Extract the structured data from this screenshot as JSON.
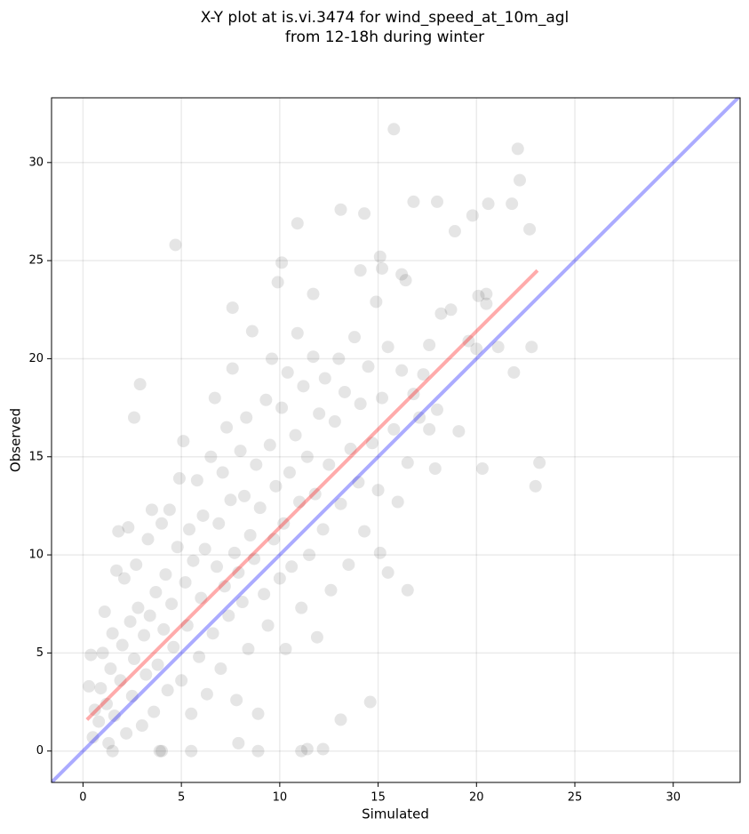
{
  "chart_data": {
    "type": "scatter",
    "title": "X-Y plot at is.vi.3474 for wind_speed_at_10m_agl",
    "subtitle": "from 12-18h during winter",
    "x_label": "Simulated",
    "y_label": "Observed",
    "xlim": [
      -1.6,
      33.4
    ],
    "ylim": [
      -1.6,
      33.3
    ],
    "xticks": [
      0,
      5,
      10,
      15,
      20,
      25,
      30
    ],
    "yticks": [
      0,
      5,
      10,
      15,
      20,
      25,
      30
    ],
    "grid": true,
    "point_color": "#000000",
    "point_alpha": 0.1,
    "x": [
      15.8,
      22.1,
      22.2,
      4.7,
      13.1,
      14.3,
      16.8,
      18,
      20.6,
      21.8,
      22.7,
      19.8,
      10.9,
      10.1,
      14.1,
      15.1,
      15.2,
      16.2,
      16.4,
      18.9,
      22.8,
      21.9,
      23,
      23.2,
      20.3,
      17.9,
      16.5,
      15.5,
      15.1,
      14.6,
      13.1,
      2.6,
      2.9,
      7.6,
      9.9,
      11.7,
      20.1,
      20.5,
      20.5,
      21.1,
      20,
      19.6,
      18.7,
      17.6,
      11.4,
      12.2,
      11.1,
      8.9,
      5.5,
      4,
      1.5,
      7.9,
      0.3,
      0.4,
      0.5,
      0.6,
      0.8,
      0.9,
      1.0,
      1.1,
      1.2,
      1.3,
      1.4,
      1.5,
      1.6,
      1.7,
      1.8,
      1.9,
      2.0,
      2.1,
      2.2,
      2.3,
      2.4,
      2.5,
      2.6,
      2.7,
      2.8,
      3.0,
      3.1,
      3.2,
      3.3,
      3.4,
      3.5,
      3.6,
      3.7,
      3.8,
      3.9,
      4.0,
      4.1,
      4.2,
      4.3,
      4.4,
      4.5,
      4.6,
      4.8,
      4.9,
      5.0,
      5.1,
      5.2,
      5.3,
      5.4,
      5.5,
      5.6,
      5.8,
      5.9,
      6.0,
      6.1,
      6.2,
      6.3,
      6.5,
      6.6,
      6.7,
      6.8,
      6.9,
      7.0,
      7.1,
      7.2,
      7.3,
      7.4,
      7.5,
      7.6,
      7.7,
      7.8,
      7.9,
      8.0,
      8.1,
      8.2,
      8.3,
      8.4,
      8.5,
      8.6,
      8.7,
      8.8,
      8.9,
      9.0,
      9.2,
      9.3,
      9.4,
      9.5,
      9.6,
      9.7,
      9.8,
      10.0,
      10.1,
      10.2,
      10.3,
      10.4,
      10.5,
      10.6,
      10.8,
      10.9,
      11.0,
      11.1,
      11.2,
      11.4,
      11.5,
      11.7,
      11.8,
      11.9,
      12.0,
      12.2,
      12.3,
      12.5,
      12.6,
      12.8,
      13.0,
      13.1,
      13.3,
      13.5,
      13.6,
      13.8,
      14.0,
      14.1,
      14.3,
      14.5,
      14.7,
      14.9,
      15.0,
      15.2,
      15.5,
      15.8,
      16.0,
      16.2,
      16.5,
      16.8,
      17.1,
      17.3,
      17.6,
      18.0,
      18.2,
      19.1
    ],
    "y": [
      31.7,
      30.7,
      29.1,
      25.8,
      27.6,
      27.4,
      28,
      28,
      27.9,
      27.9,
      26.6,
      27.3,
      26.9,
      24.9,
      24.5,
      25.2,
      24.6,
      24.3,
      24,
      26.5,
      20.6,
      19.3,
      13.5,
      14.7,
      14.4,
      14.4,
      8.2,
      9.1,
      10.1,
      2.5,
      1.6,
      17,
      18.7,
      22.6,
      23.9,
      23.3,
      23.2,
      23.3,
      22.8,
      20.6,
      20.5,
      20.9,
      22.5,
      20.7,
      0.1,
      0.1,
      0,
      0,
      0,
      0,
      0,
      0.4,
      3.3,
      4.9,
      0.7,
      2.1,
      1.5,
      3.2,
      5.0,
      7.1,
      2.4,
      0.4,
      4.2,
      6.0,
      1.8,
      9.2,
      11.2,
      3.6,
      5.4,
      8.8,
      0.9,
      11.4,
      6.6,
      2.8,
      4.7,
      9.5,
      7.3,
      1.3,
      5.9,
      3.9,
      10.8,
      6.9,
      12.3,
      2.0,
      8.1,
      4.4,
      0,
      11.6,
      6.2,
      9.0,
      3.1,
      12.3,
      7.5,
      5.3,
      10.4,
      13.9,
      3.6,
      15.8,
      8.6,
      6.4,
      11.3,
      1.9,
      9.7,
      13.8,
      4.8,
      7.8,
      12.0,
      10.3,
      2.9,
      15.0,
      6.0,
      18.0,
      9.4,
      11.6,
      4.2,
      14.2,
      8.4,
      16.5,
      6.9,
      12.8,
      19.5,
      10.1,
      2.6,
      9.1,
      15.3,
      7.6,
      13.0,
      17.0,
      5.2,
      11.0,
      21.4,
      9.8,
      14.6,
      1.9,
      12.4,
      8.0,
      17.9,
      6.4,
      15.6,
      20.0,
      10.8,
      13.5,
      8.8,
      17.5,
      11.6,
      5.2,
      19.3,
      14.2,
      9.4,
      16.1,
      21.3,
      12.7,
      7.3,
      18.6,
      15.0,
      10.0,
      20.1,
      13.1,
      5.8,
      17.2,
      11.3,
      19.0,
      14.6,
      8.2,
      16.8,
      20.0,
      12.6,
      18.3,
      9.5,
      15.4,
      21.1,
      13.7,
      17.7,
      11.2,
      19.6,
      15.7,
      22.9,
      13.3,
      18.0,
      20.6,
      16.4,
      12.7,
      19.4,
      14.7,
      18.2,
      17.0,
      19.2,
      16.4,
      17.4,
      22.3,
      16.3
    ],
    "lines": [
      {
        "color": "#0000ff",
        "x": [
          -1.6,
          33.4
        ],
        "y": [
          -1.6,
          33.4
        ]
      },
      {
        "color": "#ff0000",
        "x": [
          0.2,
          23.1
        ],
        "y": [
          1.6,
          24.5
        ]
      }
    ]
  }
}
